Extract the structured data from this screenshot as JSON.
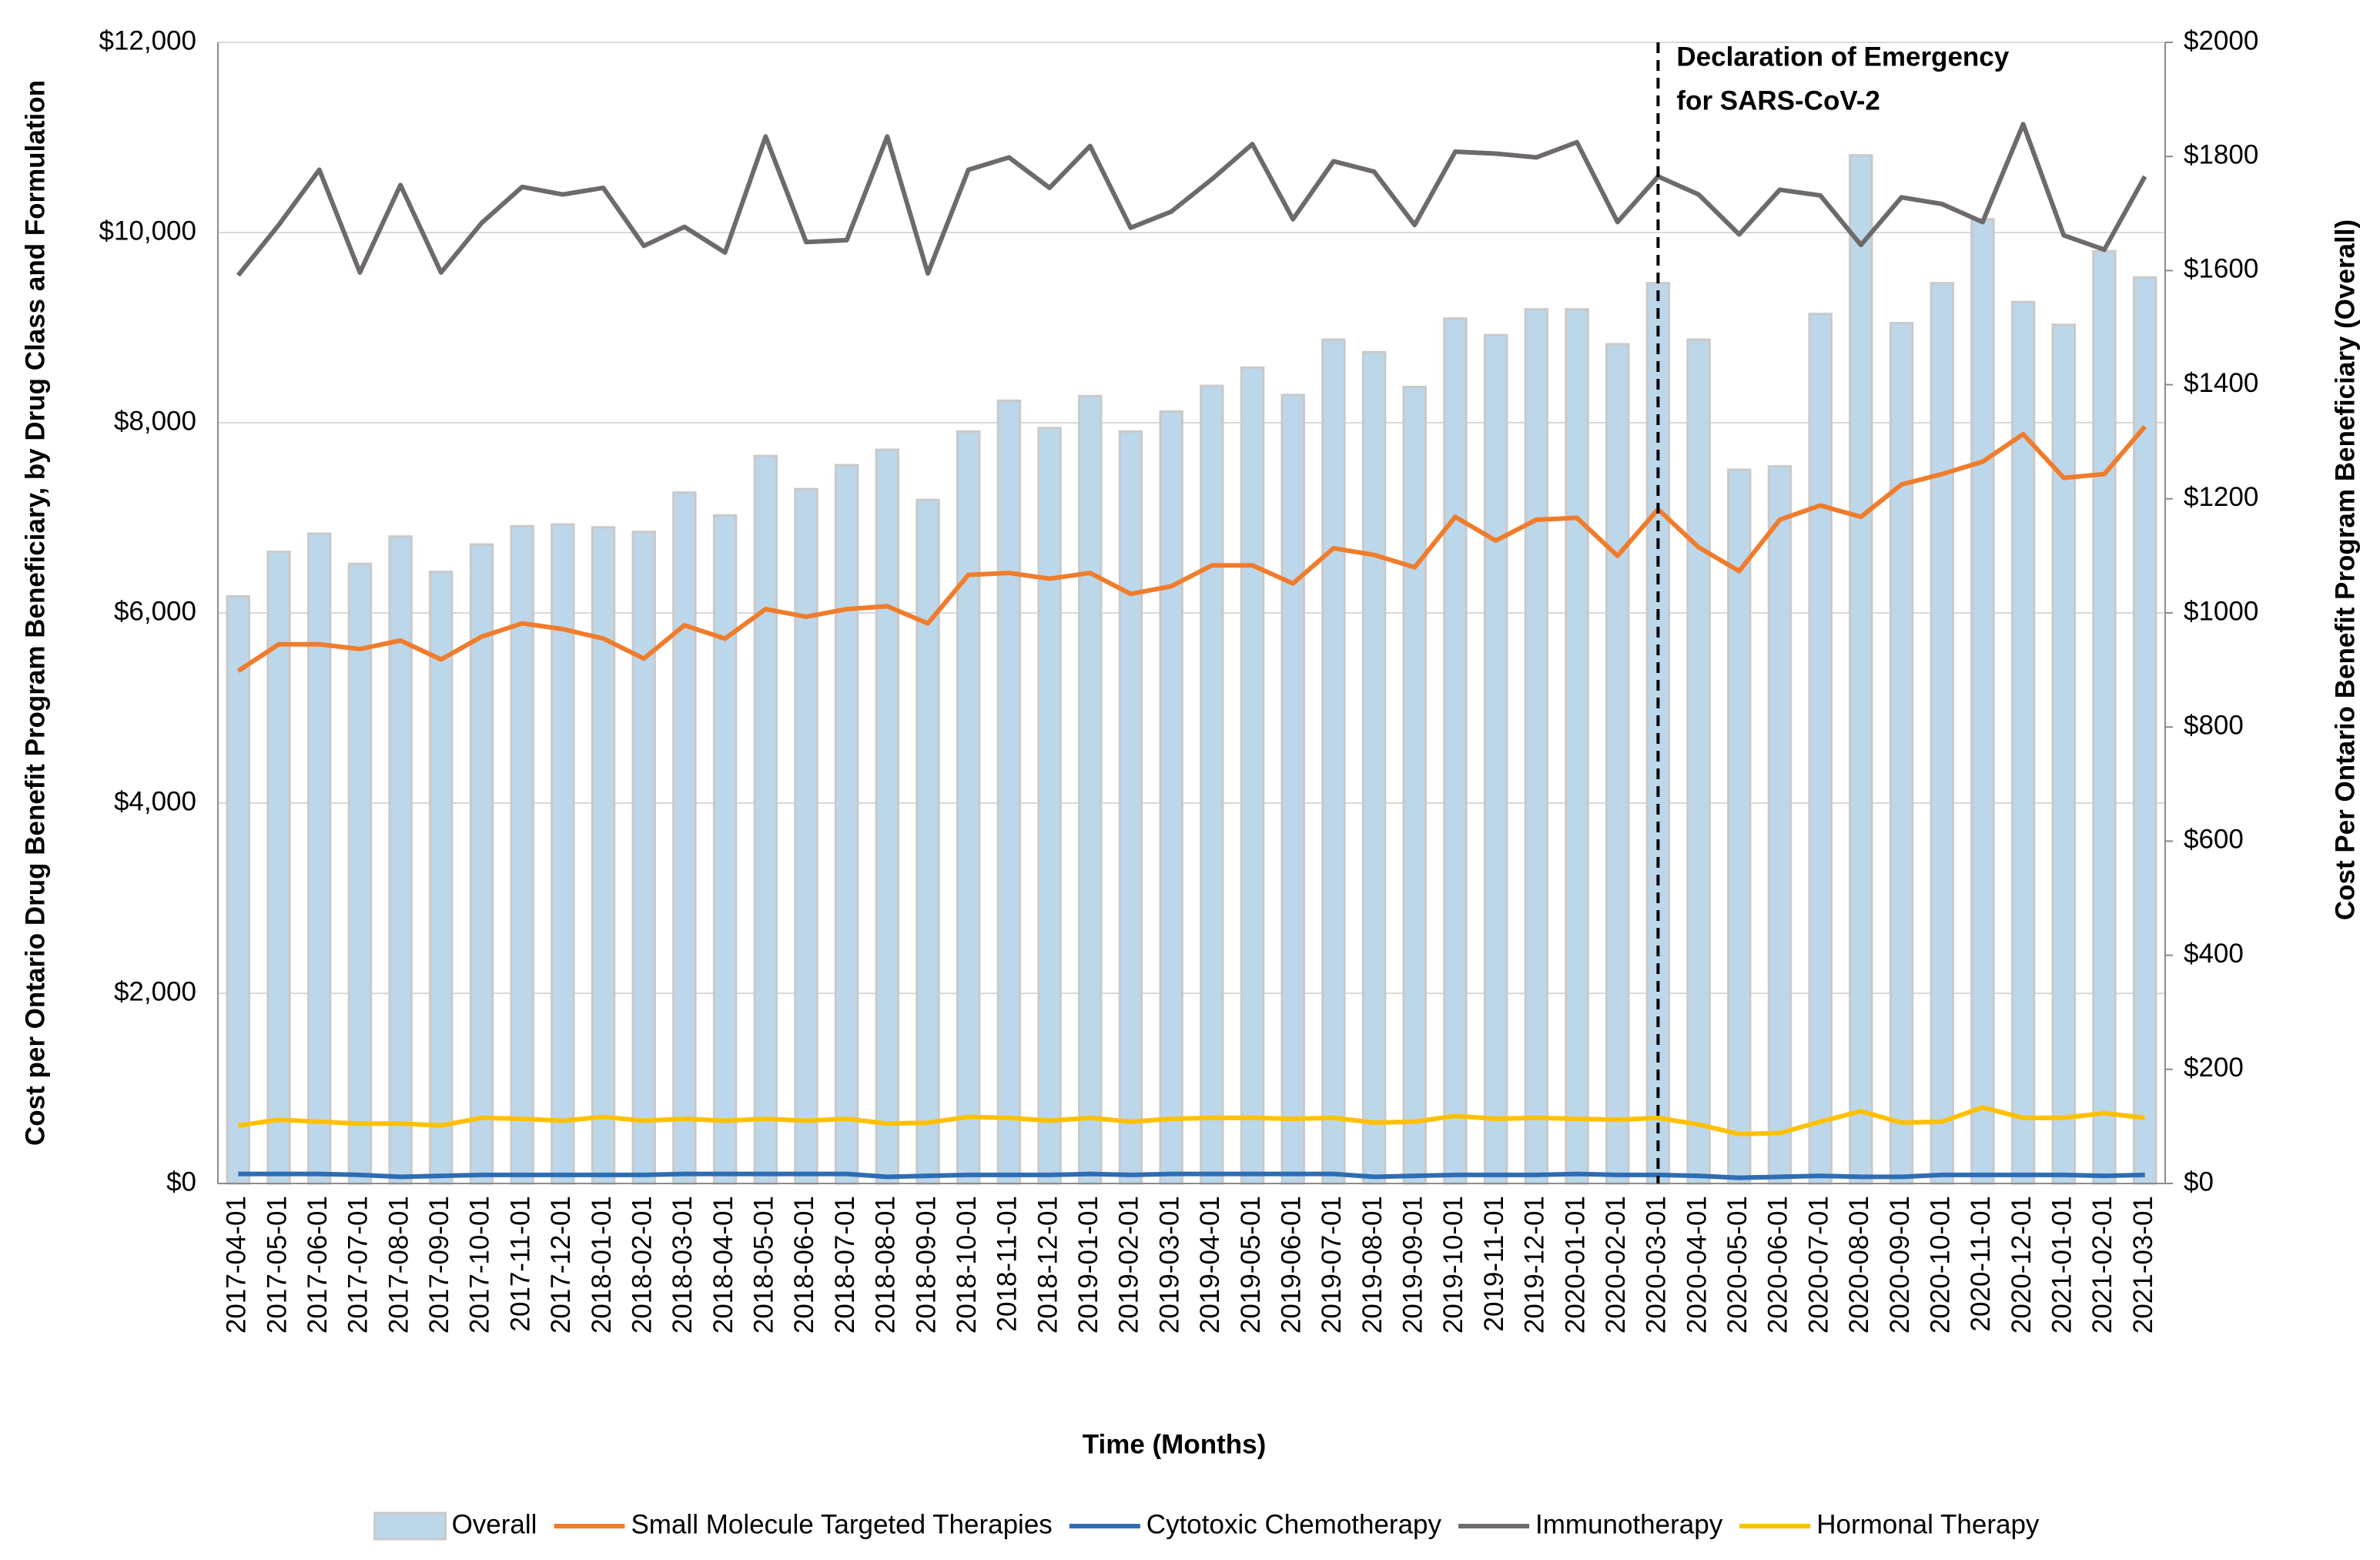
{
  "chart_data": {
    "type": "bar",
    "x_label": "Time (Months)",
    "y_label": "Cost per Ontario Drug Benefit Program Beneficiary, by Drug Class and Formulation",
    "y2_label": "Cost Per Ontario Benefit Program Beneficiary (Overall)",
    "annotation": {
      "lines": [
        "Declaration of Emergency",
        "for SARS-CoV-2"
      ],
      "x": "2020-03-01"
    },
    "grid": true,
    "legend": "bottom",
    "categories": [
      "2017-04-01",
      "2017-05-01",
      "2017-06-01",
      "2017-07-01",
      "2017-08-01",
      "2017-09-01",
      "2017-10-01",
      "2017-11-01",
      "2017-12-01",
      "2018-01-01",
      "2018-02-01",
      "2018-03-01",
      "2018-04-01",
      "2018-05-01",
      "2018-06-01",
      "2018-07-01",
      "2018-08-01",
      "2018-09-01",
      "2018-10-01",
      "2018-11-01",
      "2018-12-01",
      "2019-01-01",
      "2019-02-01",
      "2019-03-01",
      "2019-04-01",
      "2019-05-01",
      "2019-06-01",
      "2019-07-01",
      "2019-08-01",
      "2019-09-01",
      "2019-10-01",
      "2019-11-01",
      "2019-12-01",
      "2020-01-01",
      "2020-02-01",
      "2020-03-01",
      "2020-04-01",
      "2020-05-01",
      "2020-06-01",
      "2020-07-01",
      "2020-08-01",
      "2020-09-01",
      "2020-10-01",
      "2020-11-01",
      "2020-12-01",
      "2021-01-01",
      "2021-02-01",
      "2021-03-01"
    ],
    "ylim": [
      0,
      12000
    ],
    "yticks": [
      {
        "value": 0,
        "label": "$0"
      },
      {
        "value": 2000,
        "label": "$2,000"
      },
      {
        "value": 4000,
        "label": "$4,000"
      },
      {
        "value": 6000,
        "label": "$6,000"
      },
      {
        "value": 8000,
        "label": "$8,000"
      },
      {
        "value": 10000,
        "label": "$10,000"
      },
      {
        "value": 12000,
        "label": "$12,000"
      }
    ],
    "y2lim": [
      0,
      2000
    ],
    "y2ticks": [
      {
        "value": 0,
        "label": "$0"
      },
      {
        "value": 200,
        "label": "$200"
      },
      {
        "value": 400,
        "label": "$400"
      },
      {
        "value": 600,
        "label": "$600"
      },
      {
        "value": 800,
        "label": "$800"
      },
      {
        "value": 1000,
        "label": "$1000"
      },
      {
        "value": 1200,
        "label": "$1200"
      },
      {
        "value": 1400,
        "label": "$1400"
      },
      {
        "value": 1600,
        "label": "$1600"
      },
      {
        "value": 1800,
        "label": "$1800"
      },
      {
        "value": 2000,
        "label": "$2000"
      }
    ],
    "series": [
      {
        "name": "Overall",
        "type": "bar",
        "axis": "y2",
        "color": "#bcd7ea",
        "values": [
          1029,
          1107,
          1139,
          1086,
          1134,
          1072,
          1120,
          1152,
          1155,
          1150,
          1142,
          1211,
          1171,
          1275,
          1217,
          1259,
          1286,
          1198,
          1318,
          1372,
          1324,
          1380,
          1318,
          1353,
          1398,
          1430,
          1382,
          1479,
          1457,
          1396,
          1516,
          1487,
          1532,
          1532,
          1471,
          1578,
          1479,
          1251,
          1257,
          1524,
          1802,
          1508,
          1578,
          1690,
          1545,
          1505,
          1634,
          1588
        ]
      },
      {
        "name": "Small Molecule Targeted Therapies",
        "type": "line",
        "color": "#f07c2c",
        "values": [
          5390,
          5670,
          5670,
          5620,
          5710,
          5510,
          5750,
          5890,
          5830,
          5730,
          5520,
          5870,
          5730,
          6040,
          5960,
          6040,
          6070,
          5890,
          6400,
          6420,
          6360,
          6420,
          6200,
          6280,
          6500,
          6500,
          6310,
          6680,
          6610,
          6480,
          7010,
          6760,
          6980,
          7000,
          6600,
          7090,
          6690,
          6440,
          6980,
          7130,
          7010,
          7350,
          7460,
          7590,
          7880,
          7420,
          7460,
          7960
        ]
      },
      {
        "name": "Cytotoxic Chemotherapy",
        "type": "line",
        "color": "#2e6db4",
        "values": [
          100,
          100,
          100,
          90,
          70,
          80,
          90,
          90,
          90,
          90,
          90,
          100,
          100,
          100,
          100,
          100,
          70,
          80,
          90,
          90,
          90,
          100,
          90,
          100,
          100,
          100,
          100,
          100,
          70,
          80,
          90,
          90,
          90,
          100,
          90,
          90,
          80,
          60,
          70,
          80,
          70,
          70,
          90,
          90,
          90,
          90,
          80,
          90
        ]
      },
      {
        "name": "Immunotherapy",
        "type": "line",
        "color": "#6e6a6a",
        "values": [
          9550,
          10080,
          10660,
          9580,
          10500,
          9580,
          10100,
          10480,
          10400,
          10470,
          9860,
          10060,
          9790,
          11010,
          9900,
          9920,
          11010,
          9570,
          10660,
          10790,
          10470,
          10910,
          10050,
          10220,
          10560,
          10930,
          10140,
          10750,
          10640,
          10080,
          10850,
          10830,
          10790,
          10950,
          10110,
          10590,
          10400,
          9980,
          10450,
          10390,
          9870,
          10370,
          10300,
          10110,
          11140,
          9970,
          9820,
          10590
        ]
      },
      {
        "name": "Hormonal Therapy",
        "type": "line",
        "color": "#ffc000",
        "values": [
          610,
          670,
          650,
          630,
          630,
          610,
          690,
          680,
          660,
          700,
          660,
          680,
          660,
          680,
          660,
          680,
          630,
          640,
          700,
          690,
          660,
          690,
          650,
          680,
          690,
          690,
          680,
          690,
          640,
          650,
          710,
          680,
          690,
          680,
          670,
          690,
          620,
          520,
          530,
          650,
          760,
          640,
          650,
          800,
          690,
          690,
          740,
          690
        ]
      }
    ]
  }
}
